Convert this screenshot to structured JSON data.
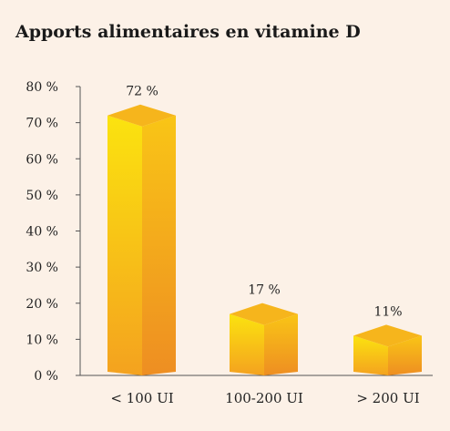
{
  "chart_data": {
    "type": "bar",
    "title": "Apports alimentaires en vitamine D",
    "xlabel": "",
    "ylabel": "",
    "categories": [
      "< 100 UI",
      "100-200 UI",
      "> 200 UI"
    ],
    "values": [
      72,
      17,
      11
    ],
    "value_labels": [
      "72 %",
      "17 %",
      "11%"
    ],
    "y_ticks": [
      "0 %",
      "10 %",
      "20 %",
      "30 %",
      "40 %",
      "50 %",
      "60 %",
      "70 %",
      "80 %"
    ],
    "ylim": [
      0,
      80
    ],
    "grid": false,
    "legend": "none",
    "style": "3d-box",
    "colors": {
      "front_top": "#fbe30f",
      "front_bottom": "#f4a21f",
      "side_top": "#f9c516",
      "side_bottom": "#ee8e22",
      "top_face": "#f6b51c",
      "axis": "#555555"
    }
  }
}
